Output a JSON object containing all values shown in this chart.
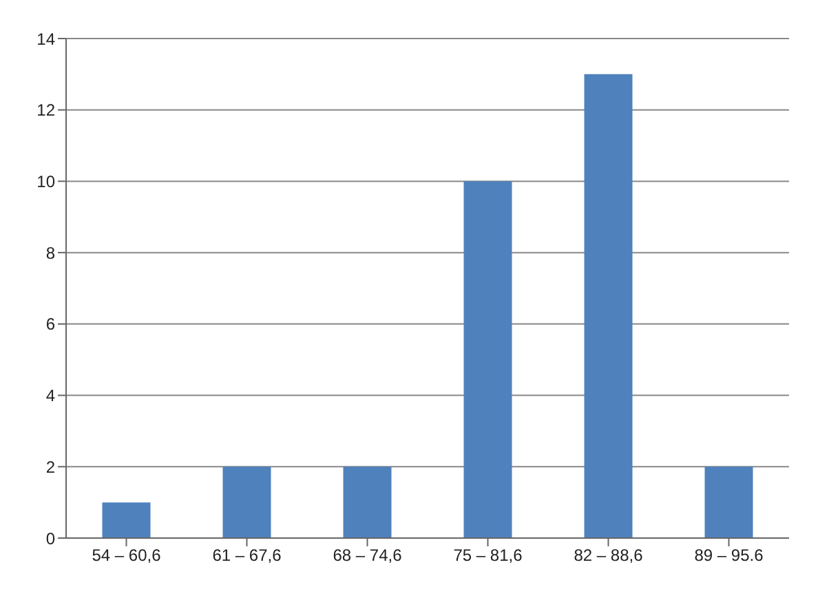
{
  "chart_data": {
    "type": "bar",
    "categories": [
      "54 – 60,6",
      "61 – 67,6",
      "68 – 74,6",
      "75 – 81,6",
      "82 – 88,6",
      "89 – 95.6"
    ],
    "values": [
      1,
      2,
      2,
      10,
      13,
      2
    ],
    "color": "#4f81bd",
    "ylim": [
      0,
      14
    ],
    "yticks": [
      0,
      2,
      4,
      6,
      8,
      10,
      12,
      14
    ],
    "grid": "y"
  }
}
